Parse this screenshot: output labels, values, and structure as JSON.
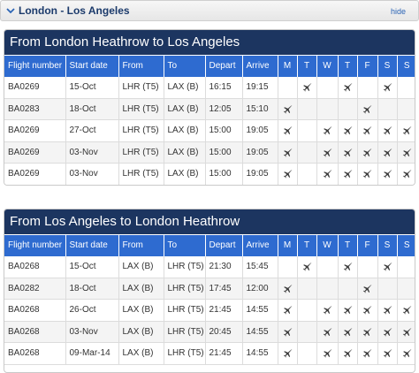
{
  "header": {
    "route_title": "London - Los Angeles",
    "hide_label": "hide"
  },
  "columns": [
    "Flight number",
    "Start date",
    "From",
    "To",
    "Depart",
    "Arrive",
    "M",
    "T",
    "W",
    "T",
    "F",
    "S",
    "S"
  ],
  "sections": [
    {
      "title": "From London Heathrow to Los Angeles",
      "rows": [
        {
          "flight": "BA0269",
          "start": "15-Oct",
          "from": "LHR (T5)",
          "to": "LAX (B)",
          "depart": "16:15",
          "arrive": "19:15",
          "days": [
            false,
            true,
            false,
            true,
            false,
            true,
            false
          ]
        },
        {
          "flight": "BA0283",
          "start": "18-Oct",
          "from": "LHR (T5)",
          "to": "LAX (B)",
          "depart": "12:05",
          "arrive": "15:10",
          "days": [
            true,
            false,
            false,
            false,
            true,
            false,
            false
          ]
        },
        {
          "flight": "BA0269",
          "start": "27-Oct",
          "from": "LHR (T5)",
          "to": "LAX (B)",
          "depart": "15:00",
          "arrive": "19:05",
          "days": [
            true,
            false,
            true,
            true,
            true,
            true,
            true
          ]
        },
        {
          "flight": "BA0269",
          "start": "03-Nov",
          "from": "LHR (T5)",
          "to": "LAX (B)",
          "depart": "15:00",
          "arrive": "19:05",
          "days": [
            true,
            false,
            true,
            true,
            true,
            true,
            true
          ]
        },
        {
          "flight": "BA0269",
          "start": "03-Nov",
          "from": "LHR (T5)",
          "to": "LAX (B)",
          "depart": "15:00",
          "arrive": "19:05",
          "days": [
            true,
            false,
            true,
            true,
            true,
            true,
            true
          ]
        }
      ]
    },
    {
      "title": "From Los Angeles to London Heathrow",
      "rows": [
        {
          "flight": "BA0268",
          "start": "15-Oct",
          "from": "LAX (B)",
          "to": "LHR (T5)",
          "depart": "21:30",
          "arrive": "15:45",
          "days": [
            false,
            true,
            false,
            true,
            false,
            true,
            false
          ]
        },
        {
          "flight": "BA0282",
          "start": "18-Oct",
          "from": "LAX (B)",
          "to": "LHR (T5)",
          "depart": "17:45",
          "arrive": "12:00",
          "days": [
            true,
            false,
            false,
            false,
            true,
            false,
            false
          ]
        },
        {
          "flight": "BA0268",
          "start": "26-Oct",
          "from": "LAX (B)",
          "to": "LHR (T5)",
          "depart": "21:45",
          "arrive": "14:55",
          "days": [
            true,
            false,
            true,
            true,
            true,
            true,
            true
          ]
        },
        {
          "flight": "BA0268",
          "start": "03-Nov",
          "from": "LAX (B)",
          "to": "LHR (T5)",
          "depart": "20:45",
          "arrive": "14:55",
          "days": [
            true,
            false,
            true,
            true,
            true,
            true,
            true
          ]
        },
        {
          "flight": "BA0268",
          "start": "09-Mar-14",
          "from": "LAX (B)",
          "to": "LHR (T5)",
          "depart": "21:45",
          "arrive": "14:55",
          "days": [
            true,
            false,
            true,
            true,
            true,
            true,
            true
          ]
        }
      ]
    }
  ],
  "icons": {
    "collapse": "chevron-down-icon",
    "flight_day": "plane-icon"
  },
  "colors": {
    "section_header_bg": "#1c3560",
    "column_header_bg": "#2e6bd0",
    "route_title": "#1b3a6b",
    "link": "#2b64b5"
  }
}
